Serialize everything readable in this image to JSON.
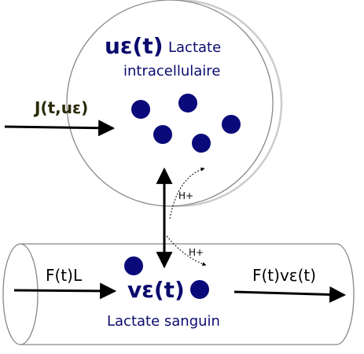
{
  "colors": {
    "lactate_text": "#0b0b6e",
    "lactate_dot": "#0a0a7a",
    "flux_label": "#2a2a08",
    "outline": "#888888",
    "arrow": "#000000"
  },
  "cell": {
    "u_symbol": "uε(t)",
    "label_line1": "Lactate",
    "label_line2": "intracellulaire"
  },
  "vessel": {
    "v_symbol": "vε(t)",
    "label": "Lactate sanguin"
  },
  "flows": {
    "injection": "J(t,uε)",
    "inflow": "F(t)L",
    "outflow": "F(t)vε(t)"
  },
  "protons": {
    "upper": "H+",
    "lower": "H+"
  }
}
